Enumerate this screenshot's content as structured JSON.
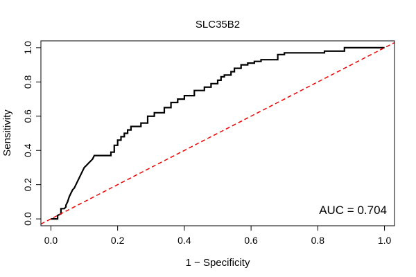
{
  "chart_data": {
    "type": "line",
    "title": "SLC35B2",
    "xlabel": "1 − Specificity",
    "ylabel": "Sensitivity",
    "xlim": [
      -0.03,
      1.03
    ],
    "ylim": [
      -0.04,
      1.04
    ],
    "x_ticks": [
      {
        "value": 0.0,
        "label": "0.0"
      },
      {
        "value": 0.2,
        "label": "0.2"
      },
      {
        "value": 0.4,
        "label": "0.4"
      },
      {
        "value": 0.6,
        "label": "0.6"
      },
      {
        "value": 0.8,
        "label": "0.8"
      },
      {
        "value": 1.0,
        "label": "1.0"
      }
    ],
    "y_ticks": [
      {
        "value": 0.0,
        "label": "0.0"
      },
      {
        "value": 0.2,
        "label": "0.2"
      },
      {
        "value": 0.4,
        "label": "0.4"
      },
      {
        "value": 0.6,
        "label": "0.6"
      },
      {
        "value": 0.8,
        "label": "0.8"
      },
      {
        "value": 1.0,
        "label": "1.0"
      }
    ],
    "grid": false,
    "annotation": "AUC = 0.704",
    "series": [
      {
        "color": "#000000",
        "style": "solid",
        "x": [
          0.0,
          0.02,
          0.02,
          0.03,
          0.03,
          0.04,
          0.045,
          0.045,
          0.05,
          0.055,
          0.06,
          0.065,
          0.07,
          0.075,
          0.08,
          0.085,
          0.09,
          0.095,
          0.1,
          0.105,
          0.11,
          0.115,
          0.12,
          0.125,
          0.13,
          0.14,
          0.14,
          0.18,
          0.18,
          0.19,
          0.19,
          0.2,
          0.2,
          0.21,
          0.21,
          0.22,
          0.22,
          0.23,
          0.23,
          0.24,
          0.24,
          0.27,
          0.27,
          0.29,
          0.29,
          0.31,
          0.31,
          0.34,
          0.34,
          0.36,
          0.36,
          0.38,
          0.38,
          0.4,
          0.4,
          0.43,
          0.43,
          0.46,
          0.46,
          0.48,
          0.48,
          0.5,
          0.5,
          0.51,
          0.51,
          0.52,
          0.52,
          0.54,
          0.54,
          0.55,
          0.55,
          0.57,
          0.57,
          0.59,
          0.59,
          0.61,
          0.61,
          0.63,
          0.63,
          0.68,
          0.68,
          0.7,
          0.7,
          0.82,
          0.82,
          0.88,
          0.88,
          1.0
        ],
        "y": [
          0.0,
          0.0,
          0.02,
          0.03,
          0.06,
          0.06,
          0.07,
          0.08,
          0.1,
          0.13,
          0.15,
          0.17,
          0.18,
          0.2,
          0.22,
          0.24,
          0.26,
          0.28,
          0.3,
          0.31,
          0.32,
          0.33,
          0.34,
          0.35,
          0.37,
          0.37,
          0.37,
          0.37,
          0.39,
          0.39,
          0.43,
          0.43,
          0.46,
          0.46,
          0.48,
          0.48,
          0.5,
          0.5,
          0.52,
          0.52,
          0.54,
          0.54,
          0.56,
          0.56,
          0.6,
          0.6,
          0.62,
          0.62,
          0.65,
          0.65,
          0.68,
          0.68,
          0.7,
          0.7,
          0.72,
          0.72,
          0.75,
          0.75,
          0.77,
          0.77,
          0.79,
          0.79,
          0.81,
          0.81,
          0.83,
          0.83,
          0.84,
          0.84,
          0.86,
          0.86,
          0.88,
          0.88,
          0.9,
          0.9,
          0.91,
          0.91,
          0.92,
          0.92,
          0.93,
          0.93,
          0.96,
          0.96,
          0.97,
          0.97,
          0.98,
          0.98,
          1.0,
          1.0
        ]
      },
      {
        "color": "#ee0000",
        "style": "dashed",
        "x": [
          -0.03,
          1.03
        ],
        "y": [
          -0.03,
          1.03
        ]
      }
    ]
  }
}
